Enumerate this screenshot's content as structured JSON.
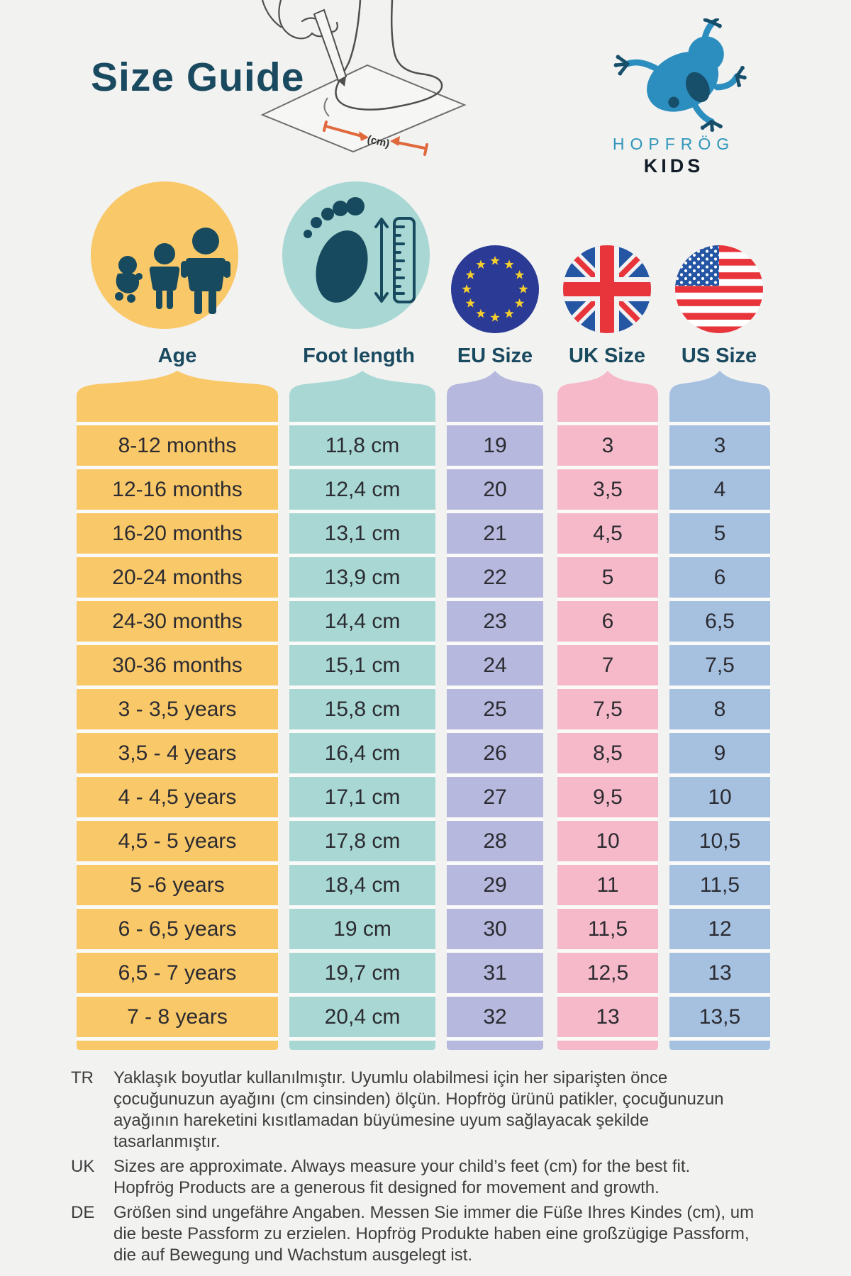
{
  "header": {
    "title": "Size Guide",
    "cm_label": "(cm)"
  },
  "brand": {
    "name": "HOPFRÖG",
    "sub": "KIDS"
  },
  "table": {
    "columns": [
      {
        "id": "age",
        "label": "Age",
        "color": "#f9c869",
        "icon": "family-icon",
        "values": [
          "8-12 months",
          "12-16 months",
          "16-20 months",
          "20-24 months",
          "24-30 months",
          "30-36 months",
          "3 - 3,5 years",
          "3,5 - 4 years",
          "4 - 4,5 years",
          "4,5 - 5 years",
          "5 -6 years",
          "6 - 6,5 years",
          "6,5 - 7 years",
          "7 - 8 years"
        ]
      },
      {
        "id": "foot",
        "label": "Foot length",
        "color": "#a9d8d4",
        "icon": "footprint-ruler-icon",
        "values": [
          "11,8 cm",
          "12,4 cm",
          "13,1 cm",
          "13,9 cm",
          "14,4 cm",
          "15,1 cm",
          "15,8 cm",
          "16,4 cm",
          "17,1 cm",
          "17,8 cm",
          "18,4 cm",
          "19 cm",
          "19,7 cm",
          "20,4 cm"
        ]
      },
      {
        "id": "eu",
        "label": "EU Size",
        "color": "#b6b8dd",
        "icon": "eu-flag-icon",
        "values": [
          "19",
          "20",
          "21",
          "22",
          "23",
          "24",
          "25",
          "26",
          "27",
          "28",
          "29",
          "30",
          "31",
          "32"
        ]
      },
      {
        "id": "uk",
        "label": "UK Size",
        "color": "#f6b9c9",
        "icon": "uk-flag-icon",
        "values": [
          "3",
          "3,5",
          "4,5",
          "5",
          "6",
          "7",
          "7,5",
          "8,5",
          "9,5",
          "10",
          "11",
          "11,5",
          "12,5",
          "13"
        ]
      },
      {
        "id": "us",
        "label": "US Size",
        "color": "#a6c0e0",
        "icon": "us-flag-icon",
        "values": [
          "3",
          "4",
          "5",
          "6",
          "6,5",
          "7,5",
          "8",
          "9",
          "10",
          "10,5",
          "11,5",
          "12",
          "13",
          "13,5"
        ]
      }
    ]
  },
  "footnotes": [
    {
      "code": "TR",
      "text": "Yaklaşık boyutlar kullanılmıştır. Uyumlu olabilmesi için her siparişten önce çocuğunuzun ayağını (cm cinsinden) ölçün. Hopfrög ürünü patikler, çocuğunuzun ayağının hareketini kısıtlamadan büyümesine uyum sağlayacak şekilde tasarlanmıştır."
    },
    {
      "code": "UK",
      "text": "Sizes are approximate. Always measure your child’s feet (cm) for the best fit. Hopfrög Products are a generous fit designed for movement and growth."
    },
    {
      "code": "DE",
      "text": "Größen sind ungefähre Angaben. Messen Sie immer die Füße Ihres Kindes (cm), um die beste Passform zu erzielen. Hopfrög Produkte haben eine großzügige Passform, die auf Bewegung und Wachstum ausgelegt ist."
    }
  ],
  "colors": {
    "page_bg": "#f2f2f1",
    "heading": "#1a4a5f",
    "text": "#2b2b31",
    "icon_teal": "#174a5e",
    "accent_orange": "#e0693c",
    "brand_blue": "#2f95ba",
    "brand_dark": "#111c26",
    "frog_blue": "#2c8ebe",
    "frog_dark": "#174f6b",
    "flag_blue": "#2456a4",
    "flag_red": "#e8353c",
    "eu_blue": "#2b3a94",
    "star_yellow": "#f6cf2e"
  }
}
